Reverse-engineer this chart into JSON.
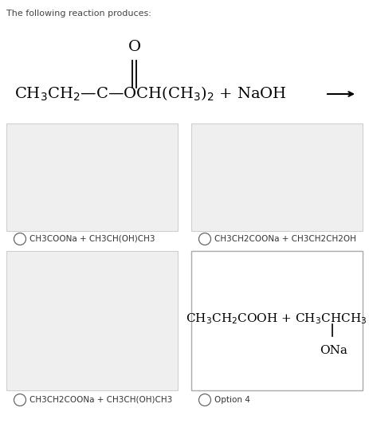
{
  "title": "The following reaction produces:",
  "title_fontsize": 8.0,
  "title_color": "#444444",
  "background_color": "#ffffff",
  "oxygen_label": "O",
  "option1_label": "CH3COONa + CH3CH(OH)CH3",
  "option2_label": "CH3CH2COONa + CH3CH2CH2OH",
  "option3_label": "CH3CH2COONa + CH3CH(OH)CH3",
  "option4_label": "Option 4",
  "box_fill_top_left": "#efefef",
  "box_fill_top_right": "#efefef",
  "box_fill_bottom_left": "#efefef",
  "box_fill_bottom_right": "#ffffff",
  "box_edge_gray": "#cccccc",
  "box_edge_dark": "#aaaaaa",
  "circle_color": "#666666",
  "rxn_fontsize": 14.0,
  "opt4_fontsize": 11.0,
  "label_fontsize": 7.5
}
